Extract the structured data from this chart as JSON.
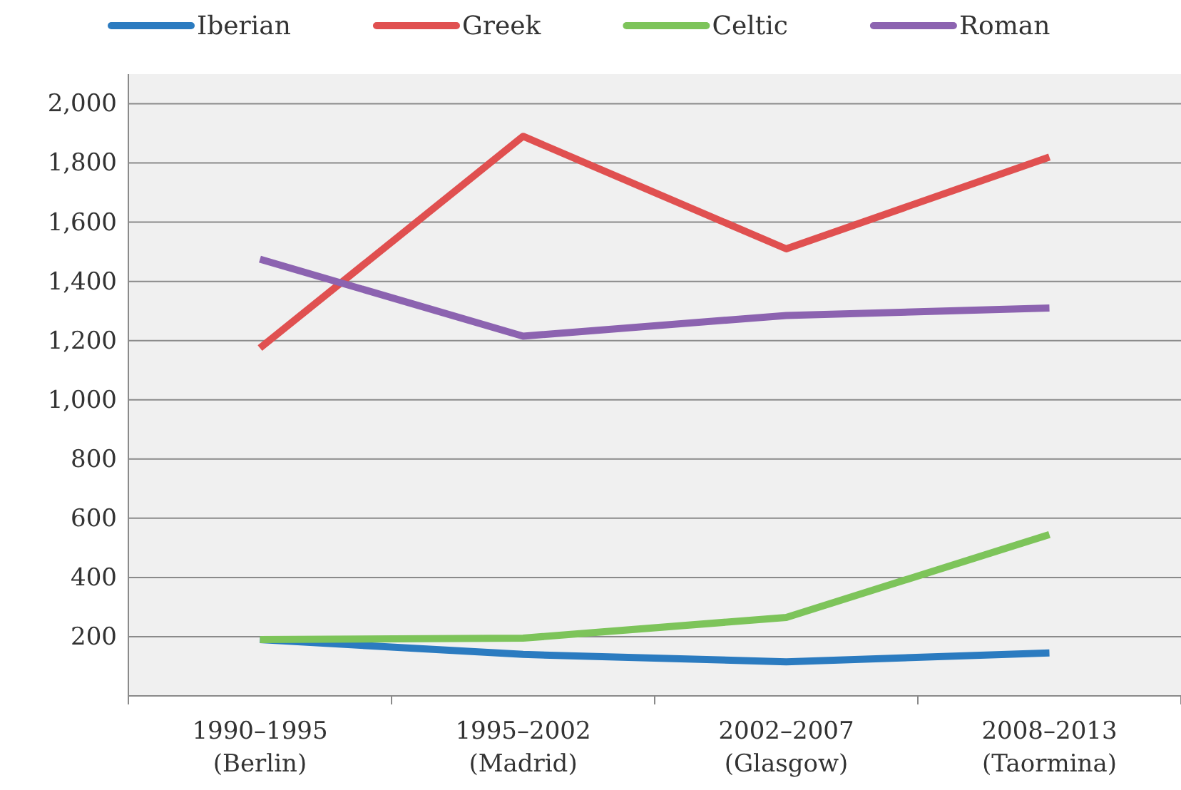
{
  "chart_data": {
    "type": "line",
    "categories": [
      "1990–1995\n(Berlin)",
      "1995–2002\n(Madrid)",
      "2002–2007\n(Glasgow)",
      "2008–2013\n(Taormina)"
    ],
    "series": [
      {
        "name": "Iberian",
        "color": "#2b7bc0",
        "values": [
          190,
          140,
          115,
          145
        ]
      },
      {
        "name": "Greek",
        "color": "#e05050",
        "values": [
          1175,
          1890,
          1510,
          1820
        ]
      },
      {
        "name": "Celtic",
        "color": "#7dc45a",
        "values": [
          190,
          195,
          265,
          545
        ]
      },
      {
        "name": "Roman",
        "color": "#8c63b0",
        "values": [
          1475,
          1215,
          1285,
          1310
        ]
      }
    ],
    "ylim": [
      0,
      2100
    ],
    "yticks": [
      {
        "value": 0,
        "label": null
      },
      {
        "value": 200,
        "label": "200"
      },
      {
        "value": 400,
        "label": "400"
      },
      {
        "value": 600,
        "label": "600"
      },
      {
        "value": 800,
        "label": "800"
      },
      {
        "value": 1000,
        "label": "1,000"
      },
      {
        "value": 1200,
        "label": "1,200"
      },
      {
        "value": 1400,
        "label": "1,400"
      },
      {
        "value": 1600,
        "label": "1,600"
      },
      {
        "value": 1800,
        "label": "1,800"
      },
      {
        "value": 2000,
        "label": "2,000"
      }
    ],
    "grid": "y",
    "legend": "top",
    "marker": "none",
    "line_style": "solid"
  }
}
